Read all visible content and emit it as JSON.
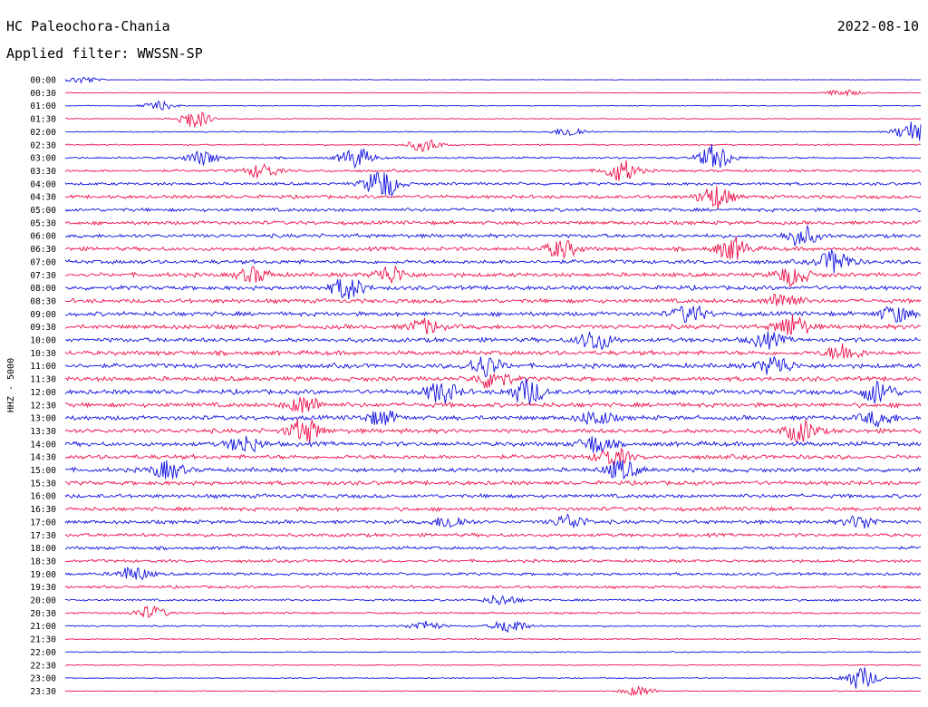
{
  "header": {
    "station": "HC Paleochora-Chania",
    "date": "2022-08-10",
    "filter": "Applied filter: WWSSN-SP"
  },
  "chart_data": {
    "type": "line",
    "title": "HC Paleochora-Chania",
    "ylabel": "HHZ - 5000",
    "rows": [
      "00:00",
      "00:30",
      "01:00",
      "01:30",
      "02:00",
      "02:30",
      "03:00",
      "03:30",
      "04:00",
      "04:30",
      "05:00",
      "05:30",
      "06:00",
      "06:30",
      "07:00",
      "07:30",
      "08:00",
      "08:30",
      "09:00",
      "09:30",
      "10:00",
      "10:30",
      "11:00",
      "11:30",
      "12:00",
      "12:30",
      "13:00",
      "13:30",
      "14:00",
      "14:30",
      "15:00",
      "15:30",
      "16:00",
      "16:30",
      "17:00",
      "17:30",
      "18:00",
      "18:30",
      "19:00",
      "19:30",
      "20:00",
      "20:30",
      "21:00",
      "21:30",
      "22:00",
      "22:30",
      "23:00",
      "23:30"
    ],
    "row_colors": [
      "#1010e0",
      "#f0104a"
    ],
    "noise_level": [
      0.1,
      0.12,
      0.15,
      0.18,
      0.22,
      0.28,
      0.4,
      0.5,
      0.6,
      0.7,
      0.72,
      0.75,
      0.78,
      0.8,
      0.82,
      0.85,
      0.85,
      0.86,
      0.88,
      0.9,
      0.9,
      0.9,
      0.92,
      0.92,
      0.92,
      0.92,
      0.92,
      0.9,
      0.9,
      0.88,
      0.85,
      0.82,
      0.8,
      0.78,
      0.75,
      0.72,
      0.65,
      0.6,
      0.58,
      0.55,
      0.45,
      0.38,
      0.32,
      0.28,
      0.24,
      0.22,
      0.2,
      0.18
    ],
    "events": [
      {
        "row": 0,
        "t": 0.02,
        "a": 0.5
      },
      {
        "row": 1,
        "t": 0.91,
        "a": 0.5
      },
      {
        "row": 2,
        "t": 0.11,
        "a": 0.6
      },
      {
        "row": 3,
        "t": 0.15,
        "a": 1.3
      },
      {
        "row": 4,
        "t": 0.59,
        "a": 0.7
      },
      {
        "row": 4,
        "t": 0.99,
        "a": 1.5
      },
      {
        "row": 5,
        "t": 0.42,
        "a": 0.9
      },
      {
        "row": 6,
        "t": 0.34,
        "a": 1.4
      },
      {
        "row": 6,
        "t": 0.16,
        "a": 1.0
      },
      {
        "row": 6,
        "t": 0.76,
        "a": 1.8
      },
      {
        "row": 7,
        "t": 0.65,
        "a": 1.5
      },
      {
        "row": 7,
        "t": 0.23,
        "a": 1.0
      },
      {
        "row": 8,
        "t": 0.37,
        "a": 2.2
      },
      {
        "row": 9,
        "t": 0.76,
        "a": 1.6
      },
      {
        "row": 12,
        "t": 0.86,
        "a": 1.4
      },
      {
        "row": 13,
        "t": 0.58,
        "a": 1.2
      },
      {
        "row": 13,
        "t": 0.78,
        "a": 1.5
      },
      {
        "row": 14,
        "t": 0.9,
        "a": 1.6
      },
      {
        "row": 15,
        "t": 0.85,
        "a": 1.4
      },
      {
        "row": 15,
        "t": 0.38,
        "a": 1.2
      },
      {
        "row": 15,
        "t": 0.22,
        "a": 1.0
      },
      {
        "row": 16,
        "t": 0.33,
        "a": 1.5
      },
      {
        "row": 17,
        "t": 0.84,
        "a": 1.2
      },
      {
        "row": 18,
        "t": 0.73,
        "a": 1.2
      },
      {
        "row": 18,
        "t": 0.97,
        "a": 1.1
      },
      {
        "row": 19,
        "t": 0.85,
        "a": 1.6
      },
      {
        "row": 19,
        "t": 0.42,
        "a": 1.0
      },
      {
        "row": 20,
        "t": 0.62,
        "a": 1.4
      },
      {
        "row": 20,
        "t": 0.82,
        "a": 1.0
      },
      {
        "row": 21,
        "t": 0.91,
        "a": 1.2
      },
      {
        "row": 22,
        "t": 0.83,
        "a": 1.4
      },
      {
        "row": 22,
        "t": 0.49,
        "a": 1.5
      },
      {
        "row": 23,
        "t": 0.5,
        "a": 1.4
      },
      {
        "row": 24,
        "t": 0.44,
        "a": 1.5
      },
      {
        "row": 24,
        "t": 0.54,
        "a": 1.8
      },
      {
        "row": 24,
        "t": 0.95,
        "a": 1.6
      },
      {
        "row": 25,
        "t": 0.28,
        "a": 1.2
      },
      {
        "row": 26,
        "t": 0.37,
        "a": 1.0
      },
      {
        "row": 26,
        "t": 0.62,
        "a": 1.0
      },
      {
        "row": 26,
        "t": 0.95,
        "a": 1.0
      },
      {
        "row": 27,
        "t": 0.28,
        "a": 1.7
      },
      {
        "row": 27,
        "t": 0.86,
        "a": 1.5
      },
      {
        "row": 28,
        "t": 0.21,
        "a": 1.2
      },
      {
        "row": 28,
        "t": 0.62,
        "a": 1.2
      },
      {
        "row": 29,
        "t": 0.64,
        "a": 1.3
      },
      {
        "row": 30,
        "t": 0.12,
        "a": 1.2
      },
      {
        "row": 30,
        "t": 0.65,
        "a": 1.3
      },
      {
        "row": 34,
        "t": 0.45,
        "a": 0.9
      },
      {
        "row": 34,
        "t": 0.59,
        "a": 1.0
      },
      {
        "row": 34,
        "t": 0.93,
        "a": 0.9
      },
      {
        "row": 38,
        "t": 0.08,
        "a": 1.0
      },
      {
        "row": 40,
        "t": 0.51,
        "a": 0.7
      },
      {
        "row": 41,
        "t": 0.1,
        "a": 0.9
      },
      {
        "row": 42,
        "t": 0.52,
        "a": 1.0
      },
      {
        "row": 42,
        "t": 0.42,
        "a": 0.7
      },
      {
        "row": 46,
        "t": 0.93,
        "a": 1.6
      },
      {
        "row": 47,
        "t": 0.67,
        "a": 0.7
      }
    ]
  }
}
